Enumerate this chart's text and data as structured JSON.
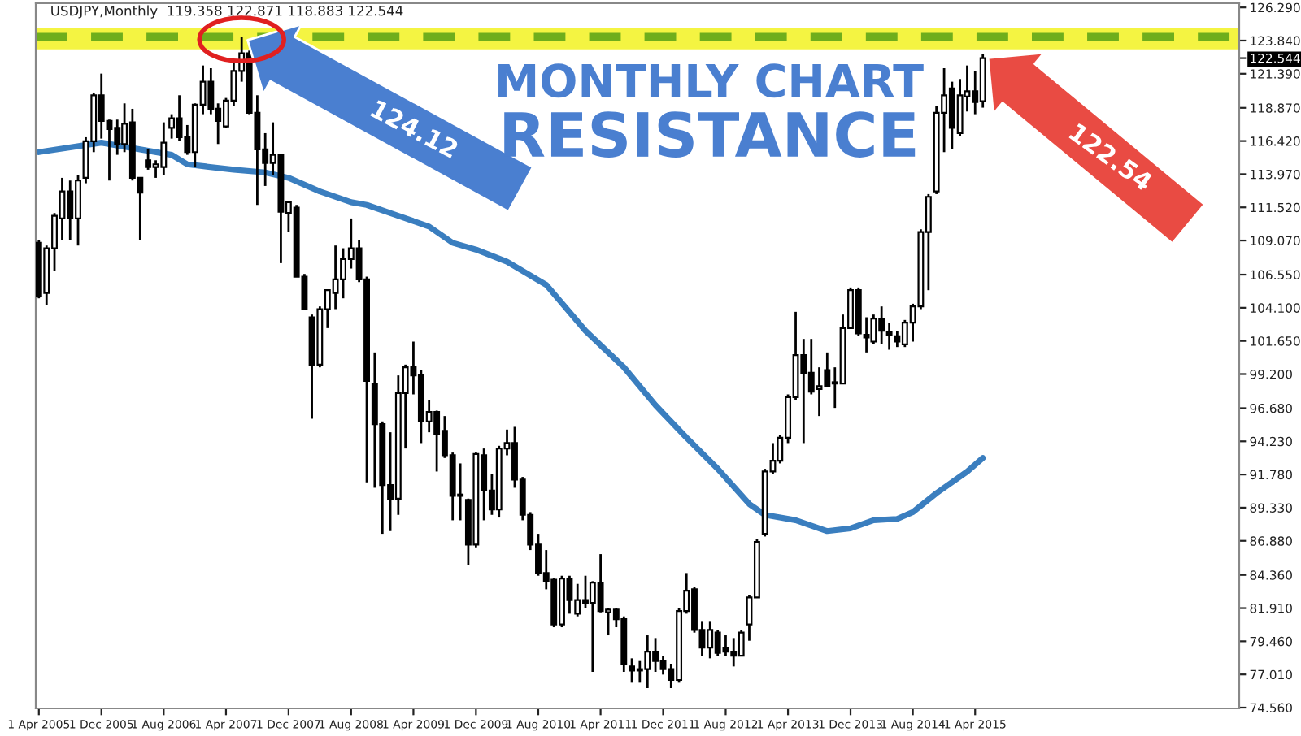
{
  "chart_data": {
    "type": "candlestick",
    "title": "USDJPY,Monthly  119.358 122.871 118.883 122.544",
    "x": [
      "2005-04",
      "2005-05",
      "2005-06",
      "2005-07",
      "2005-08",
      "2005-09",
      "2005-10",
      "2005-11",
      "2005-12",
      "2006-01",
      "2006-02",
      "2006-03",
      "2006-04",
      "2006-05",
      "2006-06",
      "2006-07",
      "2006-08",
      "2006-09",
      "2006-10",
      "2006-11",
      "2006-12",
      "2007-01",
      "2007-02",
      "2007-03",
      "2007-04",
      "2007-05",
      "2007-06",
      "2007-07",
      "2007-08",
      "2007-09",
      "2007-10",
      "2007-11",
      "2007-12",
      "2008-01",
      "2008-02",
      "2008-03",
      "2008-04",
      "2008-05",
      "2008-06",
      "2008-07",
      "2008-08",
      "2008-09",
      "2008-10",
      "2008-11",
      "2008-12",
      "2009-01",
      "2009-02",
      "2009-03",
      "2009-04",
      "2009-05",
      "2009-06",
      "2009-07",
      "2009-08",
      "2009-09",
      "2009-10",
      "2009-11",
      "2009-12",
      "2010-01",
      "2010-02",
      "2010-03",
      "2010-04",
      "2010-05",
      "2010-06",
      "2010-07",
      "2010-08",
      "2010-09",
      "2010-10",
      "2010-11",
      "2010-12",
      "2011-01",
      "2011-02",
      "2011-03",
      "2011-04",
      "2011-05",
      "2011-06",
      "2011-07",
      "2011-08",
      "2011-09",
      "2011-10",
      "2011-11",
      "2011-12",
      "2012-01",
      "2012-02",
      "2012-03",
      "2012-04",
      "2012-05",
      "2012-06",
      "2012-07",
      "2012-08",
      "2012-09",
      "2012-10",
      "2012-11",
      "2012-12",
      "2013-01",
      "2013-02",
      "2013-03",
      "2013-04",
      "2013-05",
      "2013-06",
      "2013-07",
      "2013-08",
      "2013-09",
      "2013-10",
      "2013-11",
      "2013-12",
      "2014-01",
      "2014-02",
      "2014-03",
      "2014-04",
      "2014-05",
      "2014-06",
      "2014-07",
      "2014-08",
      "2014-09",
      "2014-10",
      "2014-11",
      "2014-12",
      "2015-01",
      "2015-02",
      "2015-03",
      "2015-04",
      "2015-05"
    ],
    "ohlc": [
      [
        108.9,
        109.1,
        104.8,
        105.0
      ],
      [
        105.2,
        108.7,
        104.3,
        108.5
      ],
      [
        108.5,
        111.1,
        106.8,
        110.9
      ],
      [
        110.7,
        113.7,
        109.1,
        112.7
      ],
      [
        112.7,
        113.5,
        109.1,
        110.7
      ],
      [
        110.7,
        113.9,
        108.7,
        113.5
      ],
      [
        113.7,
        116.7,
        113.3,
        116.4
      ],
      [
        116.4,
        120.0,
        115.6,
        119.8
      ],
      [
        119.8,
        121.4,
        116.6,
        117.9
      ],
      [
        117.9,
        118.0,
        113.5,
        117.3
      ],
      [
        117.4,
        118.0,
        115.4,
        116.2
      ],
      [
        116.2,
        119.2,
        115.6,
        117.7
      ],
      [
        117.8,
        118.8,
        113.5,
        113.7
      ],
      [
        113.7,
        113.7,
        109.1,
        112.6
      ],
      [
        115.0,
        115.8,
        114.3,
        114.5
      ],
      [
        114.5,
        115.0,
        113.7,
        114.7
      ],
      [
        114.5,
        117.8,
        113.9,
        116.3
      ],
      [
        117.4,
        118.4,
        116.6,
        118.1
      ],
      [
        118.1,
        119.8,
        116.4,
        116.7
      ],
      [
        116.7,
        117.6,
        115.4,
        115.6
      ],
      [
        115.6,
        119.2,
        114.5,
        119.1
      ],
      [
        119.1,
        122.0,
        118.4,
        120.8
      ],
      [
        120.8,
        121.8,
        118.4,
        118.8
      ],
      [
        118.8,
        119.2,
        116.2,
        117.9
      ],
      [
        117.5,
        119.6,
        117.4,
        119.4
      ],
      [
        119.4,
        122.2,
        119.0,
        121.6
      ],
      [
        121.6,
        124.12,
        120.8,
        122.9
      ],
      [
        122.9,
        123.1,
        118.4,
        118.5
      ],
      [
        118.5,
        119.8,
        111.7,
        115.8
      ],
      [
        115.8,
        117.0,
        113.1,
        114.8
      ],
      [
        114.8,
        117.8,
        113.9,
        115.4
      ],
      [
        115.4,
        115.4,
        107.4,
        111.2
      ],
      [
        111.1,
        111.9,
        109.7,
        111.9
      ],
      [
        111.5,
        111.7,
        106.4,
        106.4
      ],
      [
        106.4,
        106.6,
        104.0,
        104.0
      ],
      [
        103.4,
        103.6,
        95.9,
        99.9
      ],
      [
        99.9,
        104.2,
        99.7,
        104.0
      ],
      [
        104.0,
        105.4,
        102.6,
        105.4
      ],
      [
        105.2,
        108.7,
        104.0,
        106.2
      ],
      [
        106.2,
        108.5,
        104.8,
        107.7
      ],
      [
        107.7,
        110.7,
        107.0,
        108.5
      ],
      [
        108.5,
        109.1,
        106.0,
        106.2
      ],
      [
        106.2,
        106.4,
        91.2,
        98.7
      ],
      [
        98.5,
        100.8,
        90.8,
        95.5
      ],
      [
        95.5,
        95.7,
        87.4,
        91.0
      ],
      [
        91.0,
        94.9,
        87.6,
        90.0
      ],
      [
        90.0,
        99.1,
        88.8,
        97.8
      ],
      [
        97.8,
        99.9,
        93.7,
        99.7
      ],
      [
        99.7,
        101.6,
        97.7,
        99.1
      ],
      [
        99.1,
        99.5,
        94.1,
        95.7
      ],
      [
        95.7,
        97.3,
        94.9,
        96.4
      ],
      [
        96.4,
        96.5,
        92.0,
        94.8
      ],
      [
        95.0,
        96.1,
        93.0,
        93.2
      ],
      [
        93.2,
        93.4,
        88.4,
        90.2
      ],
      [
        90.2,
        92.6,
        88.4,
        90.3
      ],
      [
        89.9,
        90.0,
        85.1,
        86.6
      ],
      [
        86.6,
        93.4,
        86.4,
        93.3
      ],
      [
        93.2,
        93.7,
        88.4,
        90.6
      ],
      [
        90.6,
        91.8,
        88.8,
        89.2
      ],
      [
        89.2,
        93.9,
        88.6,
        93.7
      ],
      [
        93.7,
        95.1,
        93.2,
        94.1
      ],
      [
        94.1,
        95.3,
        90.8,
        91.4
      ],
      [
        91.4,
        91.6,
        88.4,
        88.8
      ],
      [
        88.8,
        89.0,
        86.2,
        86.6
      ],
      [
        86.6,
        87.4,
        84.3,
        84.5
      ],
      [
        84.5,
        86.2,
        83.3,
        83.9
      ],
      [
        84.0,
        84.1,
        80.5,
        80.7
      ],
      [
        80.7,
        84.3,
        80.5,
        84.1
      ],
      [
        84.1,
        84.3,
        81.5,
        82.5
      ],
      [
        81.5,
        83.7,
        81.3,
        82.5
      ],
      [
        82.5,
        84.3,
        81.9,
        82.3
      ],
      [
        82.3,
        83.9,
        77.2,
        83.8
      ],
      [
        83.8,
        85.9,
        81.6,
        81.7
      ],
      [
        81.6,
        81.9,
        79.9,
        81.8
      ],
      [
        81.8,
        81.9,
        80.5,
        81.1
      ],
      [
        81.1,
        81.3,
        77.2,
        77.8
      ],
      [
        77.6,
        78.2,
        76.4,
        77.3
      ],
      [
        77.3,
        78.0,
        76.4,
        77.4
      ],
      [
        77.4,
        79.9,
        76.0,
        78.7
      ],
      [
        78.7,
        79.7,
        77.2,
        78.0
      ],
      [
        78.0,
        78.4,
        77.0,
        77.4
      ],
      [
        77.4,
        77.8,
        76.0,
        76.6
      ],
      [
        76.6,
        81.9,
        76.4,
        81.7
      ],
      [
        81.7,
        84.5,
        81.5,
        83.2
      ],
      [
        83.3,
        83.5,
        80.1,
        80.3
      ],
      [
        80.3,
        80.9,
        78.4,
        79.0
      ],
      [
        79.0,
        80.9,
        78.2,
        80.3
      ],
      [
        80.1,
        80.3,
        78.4,
        78.6
      ],
      [
        79.0,
        79.9,
        78.4,
        78.7
      ],
      [
        78.7,
        79.7,
        77.6,
        78.4
      ],
      [
        78.4,
        80.3,
        78.4,
        80.1
      ],
      [
        80.7,
        82.9,
        79.5,
        82.7
      ],
      [
        82.7,
        87.0,
        82.7,
        86.8
      ],
      [
        87.4,
        92.2,
        87.2,
        92.0
      ],
      [
        92.0,
        94.1,
        91.8,
        92.8
      ],
      [
        92.8,
        94.7,
        92.6,
        94.5
      ],
      [
        94.5,
        97.7,
        94.1,
        97.5
      ],
      [
        97.5,
        103.8,
        97.3,
        100.6
      ],
      [
        100.6,
        101.8,
        94.1,
        99.3
      ],
      [
        99.3,
        101.8,
        97.7,
        97.9
      ],
      [
        98.1,
        99.7,
        96.1,
        98.3
      ],
      [
        99.5,
        100.8,
        98.3,
        98.3
      ],
      [
        98.5,
        99.7,
        96.7,
        98.6
      ],
      [
        98.5,
        103.6,
        98.5,
        102.6
      ],
      [
        102.6,
        105.6,
        102.6,
        105.4
      ],
      [
        105.4,
        105.6,
        102.0,
        102.2
      ],
      [
        102.1,
        103.4,
        100.8,
        101.9
      ],
      [
        101.6,
        103.6,
        101.4,
        103.3
      ],
      [
        103.3,
        104.2,
        101.4,
        102.4
      ],
      [
        102.3,
        103.0,
        101.0,
        102.1
      ],
      [
        102.0,
        102.4,
        101.2,
        101.6
      ],
      [
        101.4,
        103.2,
        101.2,
        103.0
      ],
      [
        103.0,
        104.4,
        101.6,
        104.2
      ],
      [
        104.2,
        109.9,
        104.0,
        109.7
      ],
      [
        109.7,
        112.5,
        105.4,
        112.3
      ],
      [
        112.7,
        119.0,
        112.5,
        118.5
      ],
      [
        118.5,
        121.8,
        115.6,
        119.8
      ],
      [
        120.3,
        120.8,
        115.8,
        117.4
      ],
      [
        117.0,
        121.0,
        116.8,
        119.8
      ],
      [
        119.7,
        122.0,
        118.6,
        120.1
      ],
      [
        120.1,
        121.6,
        118.4,
        119.3
      ],
      [
        119.358,
        122.871,
        118.883,
        122.544
      ]
    ],
    "series": [
      {
        "type": "line",
        "color": "#3a7ebf",
        "x": [
          "2005-04",
          "2005-12",
          "2006-05",
          "2006-09",
          "2006-11",
          "2007-05",
          "2007-09",
          "2007-12",
          "2008-04",
          "2008-08",
          "2008-10",
          "2009-02",
          "2009-06",
          "2009-09",
          "2009-12",
          "2010-04",
          "2010-09",
          "2011-02",
          "2011-07",
          "2011-11",
          "2012-03",
          "2012-07",
          "2012-11",
          "2013-01",
          "2013-05",
          "2013-09",
          "2013-12",
          "2014-03",
          "2014-06",
          "2014-08",
          "2014-11",
          "2015-03",
          "2015-05"
        ],
        "values": [
          115.6,
          116.3,
          115.8,
          115.4,
          114.7,
          114.3,
          114.1,
          113.7,
          112.7,
          111.9,
          111.7,
          110.9,
          110.1,
          108.9,
          108.4,
          107.5,
          105.8,
          102.4,
          99.7,
          96.9,
          94.5,
          92.2,
          89.6,
          88.8,
          88.4,
          87.6,
          87.8,
          88.4,
          88.5,
          89.0,
          90.4,
          92.0,
          93.0
        ]
      }
    ],
    "xlim": [
      "2005-03-20",
      "2018-01-25"
    ],
    "xticks": [
      {
        "value": "2005-04-01",
        "label": "1 Apr 2005"
      },
      {
        "value": "2005-12-01",
        "label": "1 Dec 2005"
      },
      {
        "value": "2006-08-01",
        "label": "1 Aug 2006"
      },
      {
        "value": "2007-04-01",
        "label": "1 Apr 2007"
      },
      {
        "value": "2007-12-01",
        "label": "1 Dec 2007"
      },
      {
        "value": "2008-08-01",
        "label": "1 Aug 2008"
      },
      {
        "value": "2009-04-01",
        "label": "1 Apr 2009"
      },
      {
        "value": "2009-12-01",
        "label": "1 Dec 2009"
      },
      {
        "value": "2010-08-01",
        "label": "1 Aug 2010"
      },
      {
        "value": "2011-04-01",
        "label": "1 Apr 2011"
      },
      {
        "value": "2011-12-01",
        "label": "1 Dec 2011"
      },
      {
        "value": "2012-08-01",
        "label": "1 Aug 2012"
      },
      {
        "value": "2013-04-01",
        "label": "1 Apr 2013"
      },
      {
        "value": "2013-12-01",
        "label": "1 Dec 2013"
      },
      {
        "value": "2014-08-01",
        "label": "1 Aug 2014"
      },
      {
        "value": "2015-04-01",
        "label": "1 Apr 2015"
      }
    ],
    "ylim": [
      74.5,
      126.6
    ],
    "yticks": [
      {
        "value": 126.29,
        "label": "126.290"
      },
      {
        "value": 123.84,
        "label": "123.840"
      },
      {
        "value": 122.544,
        "label": "122.544"
      },
      {
        "value": 121.39,
        "label": "121.390"
      },
      {
        "value": 118.87,
        "label": "118.870"
      },
      {
        "value": 116.42,
        "label": "116.420"
      },
      {
        "value": 113.97,
        "label": "113.970"
      },
      {
        "value": 111.52,
        "label": "111.520"
      },
      {
        "value": 109.07,
        "label": "109.070"
      },
      {
        "value": 106.55,
        "label": "106.550"
      },
      {
        "value": 104.1,
        "label": "104.100"
      },
      {
        "value": 101.65,
        "label": "101.650"
      },
      {
        "value": 99.2,
        "label": "99.200"
      },
      {
        "value": 96.68,
        "label": "96.680"
      },
      {
        "value": 94.23,
        "label": "94.230"
      },
      {
        "value": 91.78,
        "label": "91.780"
      },
      {
        "value": 89.33,
        "label": "89.330"
      },
      {
        "value": 86.88,
        "label": "86.880"
      },
      {
        "value": 84.36,
        "label": "84.360"
      },
      {
        "value": 81.91,
        "label": "81.910"
      },
      {
        "value": 79.46,
        "label": "79.460"
      },
      {
        "value": 77.01,
        "label": "77.010"
      },
      {
        "value": 74.56,
        "label": "74.560"
      }
    ],
    "ref_lines": [
      {
        "axis": "y",
        "value": 124.12,
        "color": "#6fae1c",
        "line_style": "dashed"
      }
    ],
    "bands": [
      {
        "axis": "y",
        "from": 123.2,
        "to": 124.8,
        "color": "#f4f442"
      }
    ],
    "annotations": [
      "MONTHLY CHART",
      "RESISTANCE",
      "124.12",
      "122.54"
    ],
    "grid": false,
    "legend": false
  }
}
